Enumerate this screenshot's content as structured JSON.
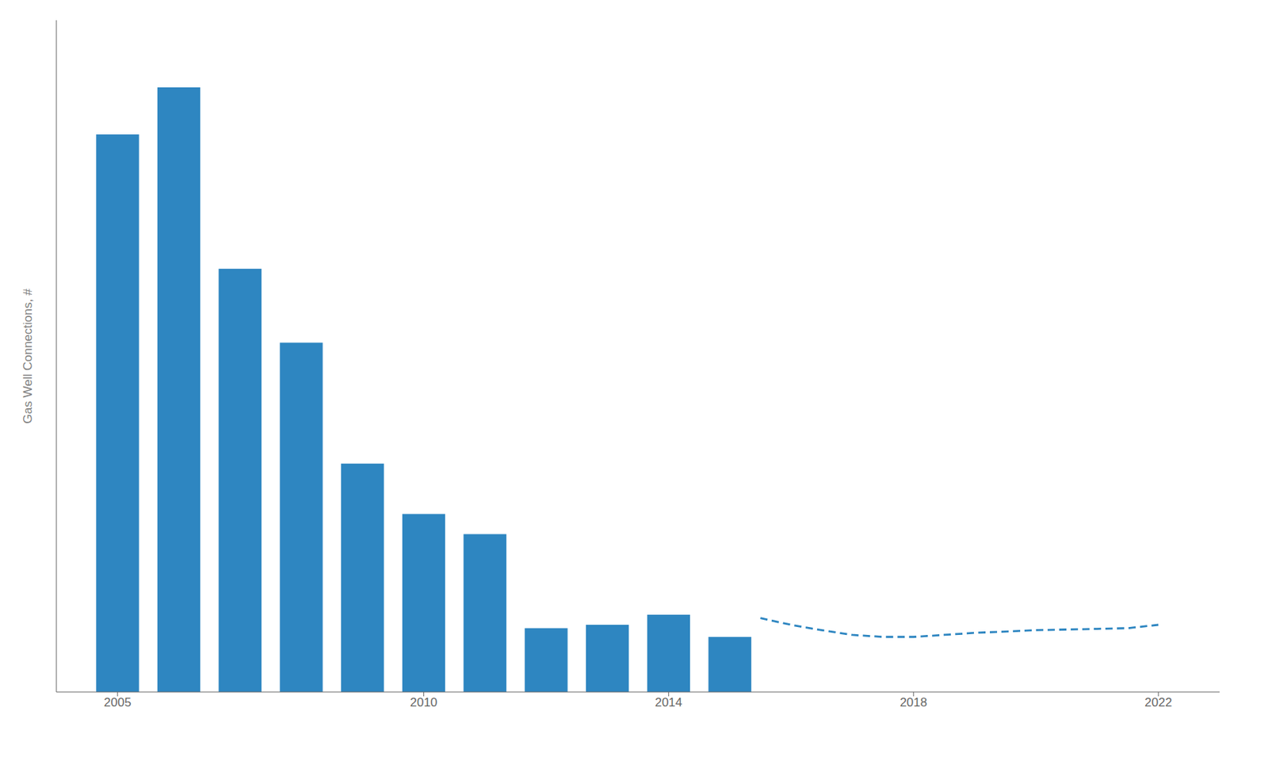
{
  "chart_data": {
    "type": "bar",
    "ylabel": "Gas  Well Connections,  #",
    "xlim": [
      2004.0,
      2023.0
    ],
    "xticks": [
      2005,
      2010,
      2014,
      2018,
      2022
    ],
    "ylim": [
      0,
      1.0
    ],
    "tick_labels": "x",
    "grid": false,
    "series": [
      {
        "type": "bar",
        "color": "#2E86C1",
        "x": [
          2005,
          2006,
          2007,
          2008,
          2009,
          2010,
          2011,
          2012,
          2013,
          2014,
          2015
        ],
        "values": [
          0.83,
          0.9,
          0.63,
          0.52,
          0.34,
          0.265,
          0.235,
          0.095,
          0.1,
          0.115,
          0.082
        ]
      },
      {
        "type": "line",
        "line_style": "dashed",
        "color": "#2E86C1",
        "x": [
          2015.5,
          2016.0,
          2016.5,
          2017.0,
          2017.5,
          2018.0,
          2018.5,
          2019.0,
          2019.5,
          2020.0,
          2020.5,
          2021.0,
          2021.5,
          2022.0
        ],
        "values": [
          0.11,
          0.1,
          0.092,
          0.085,
          0.082,
          0.082,
          0.085,
          0.088,
          0.09,
          0.092,
          0.093,
          0.094,
          0.095,
          0.1
        ]
      }
    ]
  }
}
